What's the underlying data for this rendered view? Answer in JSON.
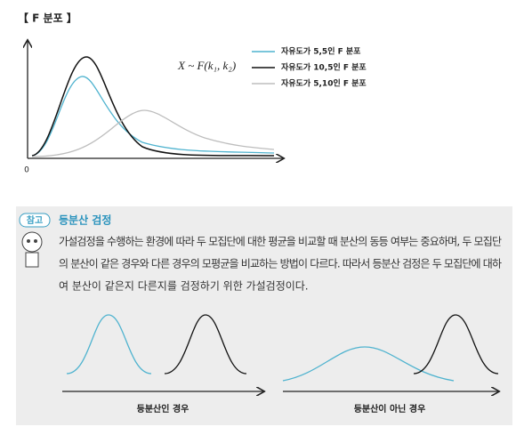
{
  "title": "【 F 분포 】",
  "figure": {
    "formula": "X ~ F(k₁, k₂)",
    "origin": "0",
    "legend": [
      {
        "label": "자유도가 5,5인 F 분포",
        "color": "#4fb3cf"
      },
      {
        "label": "자유도가 10,5인 F 분포",
        "color": "#111111"
      },
      {
        "label": "자유도가 5,10인 F 분포",
        "color": "#bdbdbd"
      }
    ]
  },
  "note": {
    "badge": "참고",
    "title": "등분산 검정",
    "body": [
      "가설검정을 수행하는 환경에 따라 두 모집단에 대한 평균을 비교할 때 분산의 동등 여부는 중요하며, 두 모집단",
      "의 분산이 같은 경우와 다른 경우의 모평균을 비교하는 방법이 다르다. 따라서 등분산 검정은 두 모집단에 대하",
      "여 분산이 같은지 다른지를 검정하기 위한 가설검정이다."
    ],
    "captions": [
      "등분산인 경우",
      "등분산이 아닌 경우"
    ]
  }
}
